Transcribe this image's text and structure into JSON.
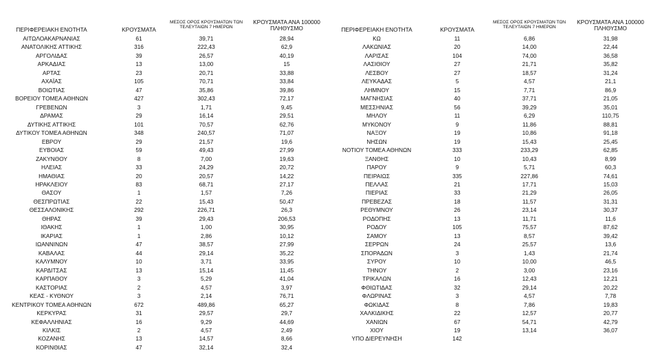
{
  "tables": [
    {
      "headers": [
        "ΠΕΡΙΦΕΡΕΙΑΚΗ ΕΝΟΤΗΤΑ",
        "ΚΡΟΥΣΜΑΤΑ",
        "ΜΕΣΟΣ ΟΡΟΣ ΚΡΟΥΣΜΑΤΩΝ ΤΩΝ ΤΕΛΕΥΤΑΙΩΝ 7 ΗΜΕΡΩΝ",
        "ΚΡΟΥΣΜΑΤΑ ΑΝΑ 100000 ΠΛΗΘΥΣΜΟ"
      ],
      "rows": [
        [
          "ΑΙΤΩΛΟΑΚΑΡΝΑΝΙΑΣ",
          "61",
          "39,71",
          "28,94"
        ],
        [
          "ΑΝΑΤΟΛΙΚΗΣ ΑΤΤΙΚΗΣ",
          "316",
          "222,43",
          "62,9"
        ],
        [
          "ΑΡΓΟΛΙΔΑΣ",
          "39",
          "26,57",
          "40,19"
        ],
        [
          "ΑΡΚΑΔΙΑΣ",
          "13",
          "13,00",
          "15"
        ],
        [
          "ΑΡΤΑΣ",
          "23",
          "20,71",
          "33,88"
        ],
        [
          "ΑΧΑΪΑΣ",
          "105",
          "70,71",
          "33,84"
        ],
        [
          "ΒΟΙΩΤΙΑΣ",
          "47",
          "35,86",
          "39,86"
        ],
        [
          "ΒΟΡΕΙΟΥ ΤΟΜΕΑ ΑΘΗΝΩΝ",
          "427",
          "302,43",
          "72,17"
        ],
        [
          "ΓΡΕΒΕΝΩΝ",
          "3",
          "1,71",
          "9,45"
        ],
        [
          "ΔΡΑΜΑΣ",
          "29",
          "16,14",
          "29,51"
        ],
        [
          "ΔΥΤΙΚΗΣ ΑΤΤΙΚΗΣ",
          "101",
          "70,57",
          "62,76"
        ],
        [
          "ΔΥΤΙΚΟΥ ΤΟΜΕΑ ΑΘΗΝΩΝ",
          "348",
          "240,57",
          "71,07"
        ],
        [
          "ΕΒΡΟΥ",
          "29",
          "21,57",
          "19,6"
        ],
        [
          "ΕΥΒΟΙΑΣ",
          "59",
          "49,43",
          "27,99"
        ],
        [
          "ΖΑΚΥΝΘΟΥ",
          "8",
          "7,00",
          "19,63"
        ],
        [
          "ΗΛΕΙΑΣ",
          "33",
          "24,29",
          "20,72"
        ],
        [
          "ΗΜΑΘΙΑΣ",
          "20",
          "20,57",
          "14,22"
        ],
        [
          "ΗΡΑΚΛΕΙΟΥ",
          "83",
          "68,71",
          "27,17"
        ],
        [
          "ΘΑΣΟΥ",
          "1",
          "1,57",
          "7,26"
        ],
        [
          "ΘΕΣΠΡΩΤΙΑΣ",
          "22",
          "15,43",
          "50,47"
        ],
        [
          "ΘΕΣΣΑΛΟΝΙΚΗΣ",
          "292",
          "226,71",
          "26,3"
        ],
        [
          "ΘΗΡΑΣ",
          "39",
          "29,43",
          "206,53"
        ],
        [
          "ΙΘΑΚΗΣ",
          "1",
          "1,00",
          "30,95"
        ],
        [
          "ΙΚΑΡΙΑΣ",
          "1",
          "2,86",
          "10,12"
        ],
        [
          "ΙΩΑΝΝΙΝΩΝ",
          "47",
          "38,57",
          "27,99"
        ],
        [
          "ΚΑΒΑΛΑΣ",
          "44",
          "29,14",
          "35,22"
        ],
        [
          "ΚΑΛΥΜΝΟΥ",
          "10",
          "3,71",
          "33,95"
        ],
        [
          "ΚΑΡΔΙΤΣΑΣ",
          "13",
          "15,14",
          "11,45"
        ],
        [
          "ΚΑΡΠΑΘΟΥ",
          "3",
          "5,29",
          "41,04"
        ],
        [
          "ΚΑΣΤΟΡΙΑΣ",
          "2",
          "4,57",
          "3,97"
        ],
        [
          "ΚΕΑΣ - ΚΥΘΝΟΥ",
          "3",
          "2,14",
          "76,71"
        ],
        [
          "ΚΕΝΤΡΙΚΟΥ ΤΟΜΕΑ ΑΘΗΝΩΝ",
          "672",
          "489,86",
          "65,27"
        ],
        [
          "ΚΕΡΚΥΡΑΣ",
          "31",
          "29,57",
          "29,7"
        ],
        [
          "ΚΕΦΑΛΛΗΝΙΑΣ",
          "16",
          "9,29",
          "44,69"
        ],
        [
          "ΚΙΛΚΙΣ",
          "2",
          "4,57",
          "2,49"
        ],
        [
          "ΚΟΖΑΝΗΣ",
          "13",
          "14,57",
          "8,66"
        ],
        [
          "ΚΟΡΙΝΘΙΑΣ",
          "47",
          "32,14",
          "32,4"
        ]
      ]
    },
    {
      "headers": [
        "ΠΕΡΙΦΕΡΕΙΑΚΗ ΕΝΟΤΗΤΑ",
        "ΚΡΟΥΣΜΑΤΑ",
        "ΜΕΣΟΣ ΟΡΟΣ ΚΡΟΥΣΜΑΤΩΝ ΤΩΝ ΤΕΛΕΥΤΑΙΩΝ 7 ΗΜΕΡΩΝ",
        "ΚΡΟΥΣΜΑΤΑ ΑΝΑ 100000 ΠΛΗΘΥΣΜΟ"
      ],
      "rows": [
        [
          "ΚΩ",
          "11",
          "6,86",
          "31,98"
        ],
        [
          "ΛΑΚΩΝΙΑΣ",
          "20",
          "14,00",
          "22,44"
        ],
        [
          "ΛΑΡΙΣΑΣ",
          "104",
          "74,00",
          "36,58"
        ],
        [
          "ΛΑΣΙΘΙΟΥ",
          "27",
          "21,71",
          "35,82"
        ],
        [
          "ΛΕΣΒΟΥ",
          "27",
          "18,57",
          "31,24"
        ],
        [
          "ΛΕΥΚΑΔΑΣ",
          "5",
          "4,57",
          "21,1"
        ],
        [
          "ΛΗΜΝΟΥ",
          "15",
          "7,71",
          "86,9"
        ],
        [
          "ΜΑΓΝΗΣΙΑΣ",
          "40",
          "37,71",
          "21,05"
        ],
        [
          "ΜΕΣΣΗΝΙΑΣ",
          "56",
          "39,29",
          "35,01"
        ],
        [
          "ΜΗΛΟΥ",
          "11",
          "6,29",
          "110,75"
        ],
        [
          "ΜΥΚΟΝΟΥ",
          "9",
          "11,86",
          "88,81"
        ],
        [
          "ΝΑΞΟΥ",
          "19",
          "10,86",
          "91,18"
        ],
        [
          "ΝΗΣΩΝ",
          "19",
          "15,43",
          "25,45"
        ],
        [
          "ΝΟΤΙΟΥ ΤΟΜΕΑ ΑΘΗΝΩΝ",
          "333",
          "233,29",
          "62,85"
        ],
        [
          "ΞΑΝΘΗΣ",
          "10",
          "10,43",
          "8,99"
        ],
        [
          "ΠΑΡΟΥ",
          "9",
          "5,71",
          "60,3"
        ],
        [
          "ΠΕΙΡΑΙΩΣ",
          "335",
          "227,86",
          "74,61"
        ],
        [
          "ΠΕΛΛΑΣ",
          "21",
          "17,71",
          "15,03"
        ],
        [
          "ΠΙΕΡΙΑΣ",
          "33",
          "21,29",
          "26,05"
        ],
        [
          "ΠΡΕΒΕΖΑΣ",
          "18",
          "11,57",
          "31,31"
        ],
        [
          "ΡΕΘΥΜΝΟΥ",
          "26",
          "23,14",
          "30,37"
        ],
        [
          "ΡΟΔΟΠΗΣ",
          "13",
          "11,71",
          "11,6"
        ],
        [
          "ΡΟΔΟΥ",
          "105",
          "75,57",
          "87,62"
        ],
        [
          "ΣΑΜΟΥ",
          "13",
          "8,57",
          "39,42"
        ],
        [
          "ΣΕΡΡΩΝ",
          "24",
          "25,57",
          "13,6"
        ],
        [
          "ΣΠΟΡΑΔΩΝ",
          "3",
          "1,43",
          "21,74"
        ],
        [
          "ΣΥΡΟΥ",
          "10",
          "10,00",
          "46,5"
        ],
        [
          "ΤΗΝΟΥ",
          "2",
          "3,00",
          "23,16"
        ],
        [
          "ΤΡΙΚΑΛΩΝ",
          "16",
          "12,43",
          "12,21"
        ],
        [
          "ΦΘΙΩΤΙΔΑΣ",
          "32",
          "29,14",
          "20,22"
        ],
        [
          "ΦΛΩΡΙΝΑΣ",
          "3",
          "4,57",
          "7,78"
        ],
        [
          "ΦΩΚΙΔΑΣ",
          "8",
          "7,86",
          "19,83"
        ],
        [
          "ΧΑΛΚΙΔΙΚΗΣ",
          "22",
          "12,57",
          "20,77"
        ],
        [
          "ΧΑΝΙΩΝ",
          "67",
          "54,71",
          "42,79"
        ],
        [
          "ΧΙΟΥ",
          "19",
          "13,14",
          "36,07"
        ],
        [
          "ΥΠΟ ΔΙΕΡΕΥΝΗΣΗ",
          "142"
        ]
      ]
    }
  ]
}
